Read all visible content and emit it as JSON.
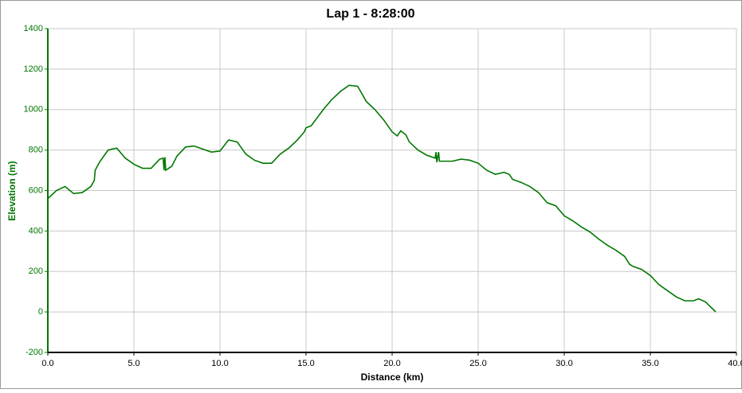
{
  "chart_data": {
    "type": "line",
    "title": "Lap 1 - 8:28:00",
    "x_label": "Distance (km)",
    "y_label": "Elevation (m)",
    "x": [
      0,
      0.5,
      1.0,
      1.5,
      2.0,
      2.5,
      2.7,
      2.75,
      3.0,
      3.5,
      4.0,
      4.5,
      5.0,
      5.5,
      6.0,
      6.5,
      6.7,
      6.75,
      6.8,
      6.85,
      7.2,
      7.5,
      8.0,
      8.5,
      9.0,
      9.5,
      10.0,
      10.5,
      11.0,
      11.5,
      12.0,
      12.5,
      13.0,
      13.5,
      14.0,
      14.5,
      14.9,
      15.0,
      15.3,
      16.0,
      16.5,
      17.0,
      17.5,
      18.0,
      18.5,
      19.0,
      19.5,
      20.0,
      20.3,
      20.5,
      20.8,
      21.0,
      21.5,
      22.0,
      22.5,
      22.55,
      22.6,
      22.7,
      22.75,
      23.0,
      23.5,
      24.0,
      24.5,
      25.0,
      25.5,
      26.0,
      26.5,
      26.8,
      27.0,
      27.5,
      28.0,
      28.5,
      29.0,
      29.5,
      30.0,
      30.5,
      31.0,
      31.5,
      32.0,
      32.5,
      33.0,
      33.5,
      33.8,
      34.0,
      34.5,
      35.0,
      35.5,
      36.0,
      36.5,
      37.0,
      37.5,
      37.8,
      38.2,
      38.8
    ],
    "series": [
      {
        "name": "Elevation",
        "color": "#007700",
        "values": [
          560,
          600,
          620,
          585,
          590,
          620,
          650,
          700,
          740,
          800,
          810,
          760,
          730,
          710,
          710,
          755,
          760,
          700,
          765,
          700,
          720,
          770,
          815,
          820,
          805,
          790,
          795,
          850,
          840,
          780,
          750,
          735,
          735,
          780,
          810,
          850,
          890,
          910,
          920,
          1000,
          1050,
          1090,
          1120,
          1115,
          1040,
          1000,
          950,
          890,
          870,
          895,
          875,
          840,
          800,
          775,
          760,
          790,
          740,
          790,
          745,
          745,
          745,
          755,
          750,
          735,
          700,
          680,
          690,
          680,
          655,
          640,
          620,
          590,
          540,
          525,
          475,
          450,
          420,
          395,
          360,
          330,
          305,
          275,
          235,
          225,
          210,
          180,
          135,
          105,
          75,
          55,
          55,
          65,
          50,
          0
        ]
      }
    ],
    "xlim": [
      0,
      40
    ],
    "ylim": [
      -200,
      1400
    ],
    "xticks": [
      {
        "value": 0,
        "label": "0.0"
      },
      {
        "value": 5,
        "label": "5.0"
      },
      {
        "value": 10,
        "label": "10.0"
      },
      {
        "value": 15,
        "label": "15.0"
      },
      {
        "value": 20,
        "label": "20.0"
      },
      {
        "value": 25,
        "label": "25.0"
      },
      {
        "value": 30,
        "label": "30.0"
      },
      {
        "value": 35,
        "label": "35.0"
      },
      {
        "value": 40,
        "label": "40.0"
      }
    ],
    "yticks": [
      -200,
      0,
      200,
      400,
      600,
      800,
      1000,
      1200,
      1400
    ],
    "grid": true,
    "axis_color": "#007700"
  }
}
